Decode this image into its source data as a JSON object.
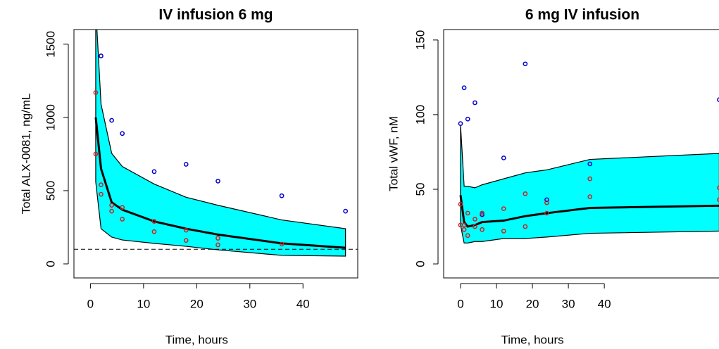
{
  "chart_data": [
    {
      "type": "line",
      "title": "IV infusion 6 mg",
      "x_label": "Time, hours",
      "y_label": "Total ALX-0081, ng/mL",
      "xlim": [
        -3.1,
        50.3
      ],
      "ylim": [
        -96,
        1600
      ],
      "xticks": [
        0,
        10,
        20,
        30,
        40
      ],
      "yticks": [
        0,
        500,
        1000,
        1500
      ],
      "reference_line": 100,
      "band": {
        "color": "#00ffff",
        "x": [
          1,
          2,
          4,
          6,
          12,
          18,
          24,
          36,
          48
        ],
        "upper": [
          1750,
          1090,
          755,
          665,
          545,
          455,
          400,
          300,
          240
        ],
        "lower": [
          560,
          240,
          183,
          163,
          140,
          120,
          96,
          58,
          53
        ]
      },
      "series": [
        {
          "color": "#000000",
          "x": [
            1,
            2,
            4,
            6,
            12,
            18,
            24,
            36,
            48
          ],
          "values": [
            1000,
            650,
            420,
            370,
            290,
            240,
            200,
            140,
            110
          ]
        }
      ],
      "points": [
        {
          "color": "#0000cc",
          "x": [
            2,
            4,
            6,
            12,
            18,
            24,
            36,
            48
          ],
          "values": [
            1420,
            980,
            890,
            630,
            680,
            565,
            465,
            360
          ]
        },
        {
          "color": "#cc2222",
          "x": [
            1,
            1,
            2,
            2,
            4,
            4,
            6,
            6,
            12,
            12,
            18,
            18,
            24,
            24,
            36
          ],
          "values": [
            1170,
            750,
            540,
            475,
            400,
            360,
            385,
            305,
            290,
            220,
            230,
            160,
            175,
            130,
            135
          ]
        }
      ]
    },
    {
      "type": "line",
      "title": "6 mg IV infusion",
      "x_label": "Time, hours",
      "y_label": "Total vWF, nM",
      "xlim": [
        -4.7,
        72.5
      ],
      "ylim": [
        -9.4,
        157
      ],
      "xticks": [
        0,
        10,
        20,
        30,
        40
      ],
      "yticks": [
        0,
        50,
        100,
        150
      ],
      "band": {
        "color": "#00ffff",
        "x": [
          0,
          1,
          2,
          4,
          6,
          12,
          18,
          24,
          36,
          72
        ],
        "upper": [
          93,
          52,
          52,
          51,
          53,
          57,
          61,
          63,
          70,
          74
        ],
        "lower": [
          26,
          14,
          14,
          15,
          15,
          17,
          17,
          18,
          20.5,
          22
        ]
      },
      "series": [
        {
          "color": "#000000",
          "x": [
            0,
            1,
            2,
            4,
            6,
            12,
            18,
            24,
            36,
            72
          ],
          "values": [
            46,
            28,
            25,
            26,
            28,
            29,
            32,
            34,
            37.5,
            39
          ]
        }
      ],
      "points": [
        {
          "color": "#0000cc",
          "x": [
            0,
            1,
            2,
            4,
            6,
            12,
            18,
            24,
            36,
            72
          ],
          "values": [
            94,
            118,
            97,
            108,
            33,
            71,
            134,
            43,
            67,
            110
          ]
        },
        {
          "color": "#cc2222",
          "x": [
            0,
            0,
            1,
            1,
            2,
            2,
            4,
            4,
            6,
            6,
            12,
            12,
            18,
            18,
            24,
            24,
            36,
            36,
            72,
            72
          ],
          "values": [
            40,
            26,
            26,
            23,
            34,
            19,
            30,
            25,
            34,
            23,
            37,
            22,
            47,
            25,
            41,
            34,
            57,
            45,
            51,
            43
          ]
        }
      ]
    }
  ]
}
